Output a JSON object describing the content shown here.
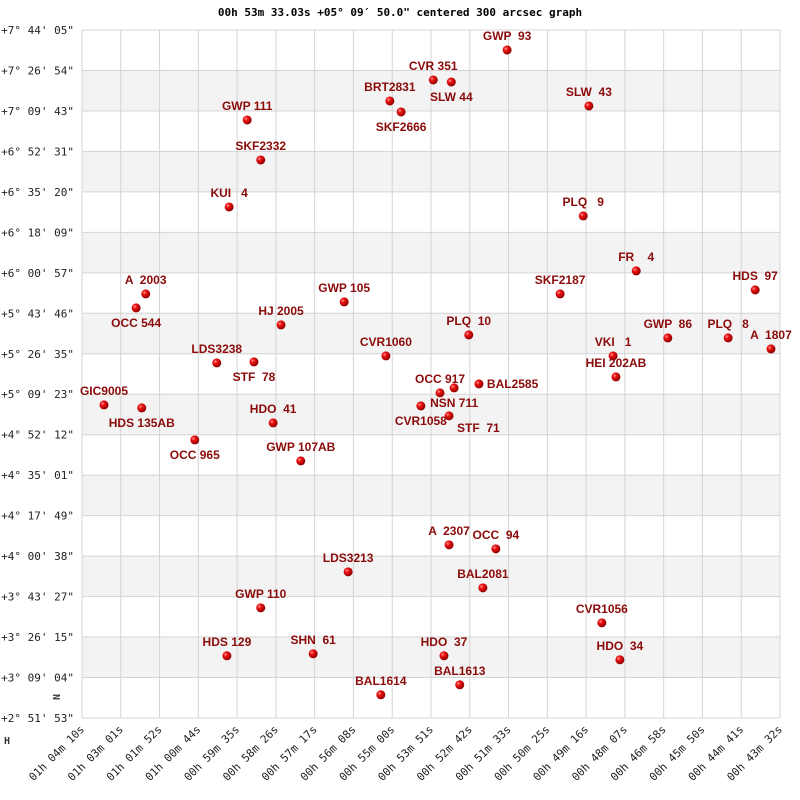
{
  "chart_data": {
    "type": "scatter",
    "title": "00h 53m 33.03s +05° 09′ 50.0\" centered 300 arcsec graph",
    "x_axis_marker": "H",
    "y_axis_marker": "N",
    "x_reversed": true,
    "grid": true,
    "banded_rows": true,
    "marker_color": "#e00000",
    "label_color": "#8b0a0a",
    "x_ticks": [
      "01h 04m 10s",
      "01h 03m 01s",
      "01h 01m 52s",
      "01h 00m 44s",
      "00h 59m 35s",
      "00h 58m 26s",
      "00h 57m 17s",
      "00h 56m 08s",
      "00h 55m 00s",
      "00h 53m 51s",
      "00h 52m 42s",
      "00h 51m 33s",
      "00h 50m 25s",
      "00h 49m 16s",
      "00h 48m 07s",
      "00h 46m 58s",
      "00h 45m 50s",
      "00h 44m 41s",
      "00h 43m 32s"
    ],
    "y_ticks": [
      "+7° 44' 05\"",
      "+7° 26' 54\"",
      "+7° 09' 43\"",
      "+6° 52' 31\"",
      "+6° 35' 20\"",
      "+6° 18' 09\"",
      "+6° 00' 57\"",
      "+5° 43' 46\"",
      "+5° 26' 35\"",
      "+5° 09' 23\"",
      "+4° 52' 12\"",
      "+4° 35' 01\"",
      "+4° 17' 49\"",
      "+4° 00' 38\"",
      "+3° 43' 27\"",
      "+3° 26' 15\"",
      "+3° 09' 04\"",
      "+2° 51' 53\""
    ],
    "points": [
      {
        "name": "GWP  93",
        "ra": "00h 51m 36s",
        "dec": "+7° 35' 36\""
      },
      {
        "name": "CVR 351",
        "ra": "00h 53m 47s",
        "dec": "+7° 22' 51\""
      },
      {
        "name": "SLW 44",
        "ra": "00h 53m 15s",
        "dec": "+7° 22' 00\""
      },
      {
        "name": "BRT2831",
        "ra": "00h 55m 04s",
        "dec": "+7° 13' 56\""
      },
      {
        "name": "SKF2666",
        "ra": "00h 54m 44s",
        "dec": "+7° 09' 16\""
      },
      {
        "name": "SLW  43",
        "ra": "00h 49m 11s",
        "dec": "+7° 11' 49\""
      },
      {
        "name": "GWP 111",
        "ra": "00h 59m 17s",
        "dec": "+7° 05' 52\""
      },
      {
        "name": "SKF2332",
        "ra": "00h 58m 53s",
        "dec": "+6° 48' 53\""
      },
      {
        "name": "KUI   4",
        "ra": "00h 59m 49s",
        "dec": "+6° 28' 56\""
      },
      {
        "name": "PLQ   9",
        "ra": "00h 49m 21s",
        "dec": "+6° 25' 07\""
      },
      {
        "name": "FR    4",
        "ra": "00h 47m 47s",
        "dec": "+6° 01' 46\""
      },
      {
        "name": "SKF2187",
        "ra": "00h 50m 02s",
        "dec": "+5° 52' 00\""
      },
      {
        "name": "HDS  97",
        "ra": "00h 44m 16s",
        "dec": "+5° 53' 42\""
      },
      {
        "name": "A  2003",
        "ra": "01h 02m 17s",
        "dec": "+5° 52' 00\""
      },
      {
        "name": "OCC 544",
        "ra": "01h 02m 34s",
        "dec": "+5° 46' 03\""
      },
      {
        "name": "GWP 105",
        "ra": "00h 56m 25s",
        "dec": "+5° 48' 36\""
      },
      {
        "name": "HJ 2005",
        "ra": "00h 58m 17s",
        "dec": "+5° 38' 50\""
      },
      {
        "name": "PLQ  10",
        "ra": "00h 52m 44s",
        "dec": "+5° 34' 35\""
      },
      {
        "name": "GWP  86",
        "ra": "00h 46m 51s",
        "dec": "+5° 33' 19\""
      },
      {
        "name": "PLQ   8",
        "ra": "00h 45m 04s",
        "dec": "+5° 33' 19\""
      },
      {
        "name": "A  1807",
        "ra": "00h 43m 48s",
        "dec": "+5° 28' 39\""
      },
      {
        "name": "CVR1060",
        "ra": "00h 55m 11s",
        "dec": "+5° 25' 40\""
      },
      {
        "name": "VKI   1",
        "ra": "00h 48m 28s",
        "dec": "+5° 25' 40\""
      },
      {
        "name": "HEI 202AB",
        "ra": "00h 48m 23s",
        "dec": "+5° 16' 45\""
      },
      {
        "name": "LDS3238",
        "ra": "01h 00m 11s",
        "dec": "+5° 22' 42\""
      },
      {
        "name": "STF  78",
        "ra": "00h 59m 05s",
        "dec": "+5° 23' 07\""
      },
      {
        "name": "OCC 917",
        "ra": "00h 53m 35s",
        "dec": "+5° 09' 58\""
      },
      {
        "name": "NSN 711",
        "ra": "00h 53m 10s",
        "dec": "+5° 12' 05\""
      },
      {
        "name": "BAL2585",
        "ra": "00h 52m 26s",
        "dec": "+5° 13' 47\""
      },
      {
        "name": "CVR1058",
        "ra": "00h 54m 09s",
        "dec": "+5° 04' 26\""
      },
      {
        "name": "STF  71",
        "ra": "00h 53m 19s",
        "dec": "+5° 00' 12\""
      },
      {
        "name": "GIC9005",
        "ra": "01h 03m 31s",
        "dec": "+5° 04' 52\""
      },
      {
        "name": "HDS 135AB",
        "ra": "01h 02m 24s",
        "dec": "+5° 03' 35\""
      },
      {
        "name": "HDO  41",
        "ra": "00h 58m 31s",
        "dec": "+4° 57' 13\""
      },
      {
        "name": "OCC 965",
        "ra": "01h 00m 50s",
        "dec": "+4° 50' 00\""
      },
      {
        "name": "GWP 107AB",
        "ra": "00h 57m 42s",
        "dec": "+4° 41' 05\""
      },
      {
        "name": "A  2307",
        "ra": "00h 53m 19s",
        "dec": "+4° 05' 25\""
      },
      {
        "name": "OCC  94",
        "ra": "00h 51m 56s",
        "dec": "+4° 03' 44\""
      },
      {
        "name": "LDS3213",
        "ra": "00h 56m 18s",
        "dec": "+3° 53' 58\""
      },
      {
        "name": "BAL2081",
        "ra": "00h 52m 19s",
        "dec": "+3° 47' 10\""
      },
      {
        "name": "GWP 110",
        "ra": "00h 58m 53s",
        "dec": "+3° 38' 40\""
      },
      {
        "name": "CVR1056",
        "ra": "00h 48m 48s",
        "dec": "+3° 32' 18\""
      },
      {
        "name": "HDS 129",
        "ra": "00h 59m 53s",
        "dec": "+3° 18' 18\""
      },
      {
        "name": "SHN  61",
        "ra": "00h 57m 20s",
        "dec": "+3° 19' 09\""
      },
      {
        "name": "HDO  37",
        "ra": "00h 53m 28s",
        "dec": "+3° 18' 18\""
      },
      {
        "name": "HDO  34",
        "ra": "00h 48m 16s",
        "dec": "+3° 16' 36\""
      },
      {
        "name": "BAL1614",
        "ra": "00h 55m 20s",
        "dec": "+3° 01' 44\""
      },
      {
        "name": "BAL1613",
        "ra": "00h 53m 00s",
        "dec": "+3° 05' 59\""
      }
    ]
  }
}
